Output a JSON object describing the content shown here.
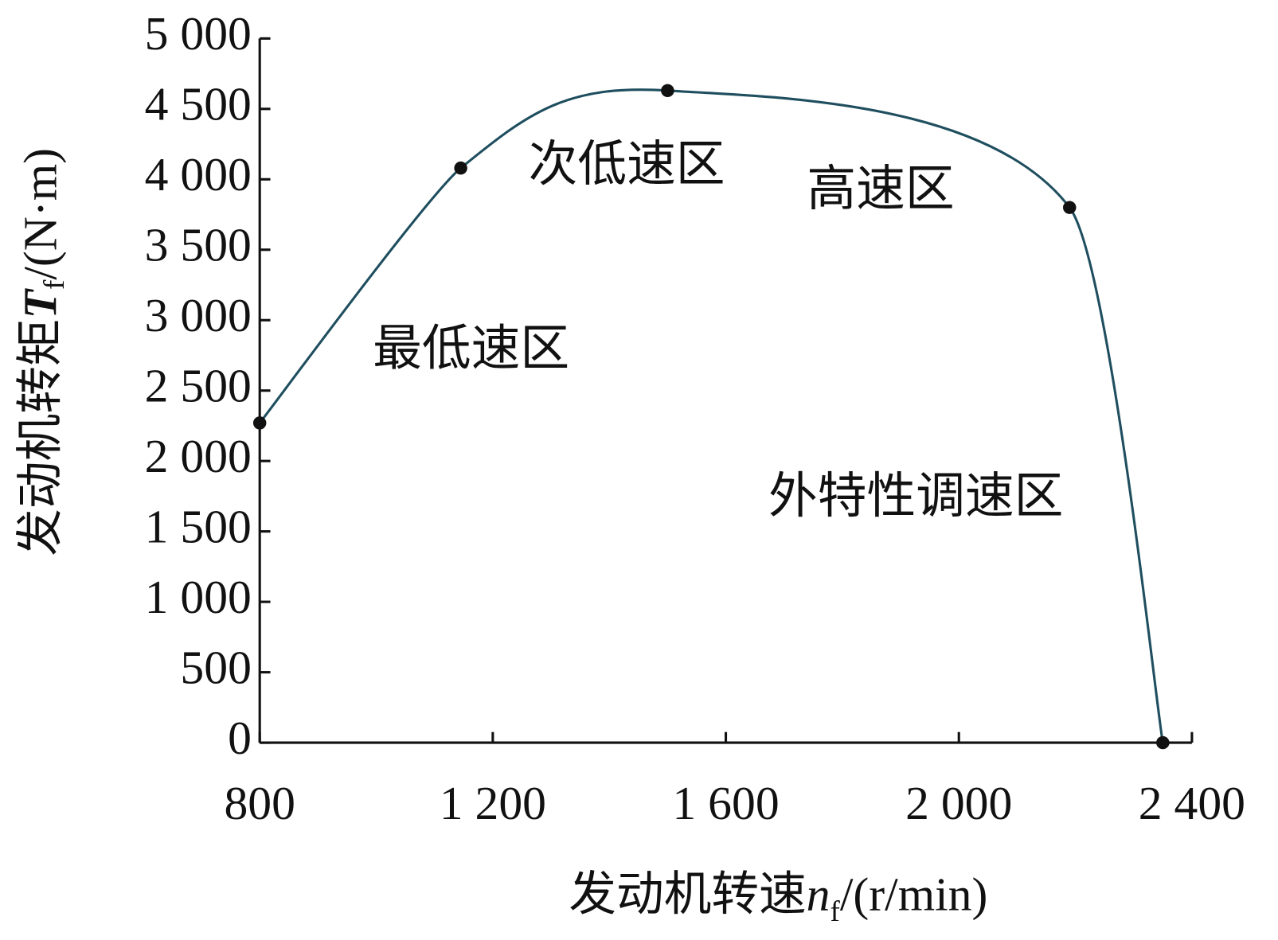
{
  "chart_data": {
    "type": "line",
    "x_label": {
      "text": "发动机转速",
      "symbol": "n",
      "subscript": "f",
      "unit": "/(r/min)"
    },
    "y_label": {
      "text": "发动机转矩",
      "symbol": "T",
      "subscript": "f",
      "unit": "/(N·m)"
    },
    "x": [
      800,
      1145,
      1500,
      2190,
      2350
    ],
    "series": [
      {
        "color": "#1f4e5f",
        "marker_color": "#111111",
        "values": [
          2270,
          4080,
          4630,
          3800,
          0
        ]
      }
    ],
    "xlim": [
      800,
      2400
    ],
    "xticks": [
      800,
      {
        "value": 1200,
        "label": "1 200"
      },
      {
        "value": 1600,
        "label": "1 600"
      },
      {
        "value": 2000,
        "label": "2 000"
      },
      {
        "value": 2400,
        "label": "2 400"
      }
    ],
    "ylim": [
      0,
      5000
    ],
    "yticks": [
      0,
      500,
      {
        "value": 1000,
        "label": "1 000"
      },
      {
        "value": 1500,
        "label": "1 500"
      },
      {
        "value": 2000,
        "label": "2 000"
      },
      {
        "value": 2500,
        "label": "2 500"
      },
      {
        "value": 3000,
        "label": "3 000"
      },
      {
        "value": 3500,
        "label": "3 500"
      },
      {
        "value": 4000,
        "label": "4 000"
      },
      {
        "value": 4500,
        "label": "4 500"
      },
      {
        "value": 5000,
        "label": "5 000"
      }
    ],
    "annotations": [
      "最低速区",
      "次低速区",
      "高速区",
      "外特性调速区"
    ]
  }
}
